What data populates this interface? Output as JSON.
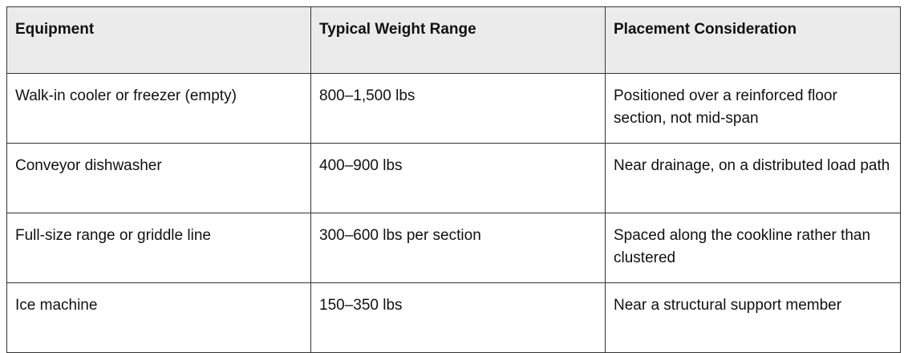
{
  "table": {
    "headers": [
      "Equipment",
      "Typical Weight Range",
      "Placement Consideration"
    ],
    "rows": [
      [
        "Walk-in cooler or freezer (empty)",
        "800–1,500 lbs",
        "Positioned over a reinforced floor section, not mid-span"
      ],
      [
        "Conveyor dishwasher",
        "400–900 lbs",
        "Near drainage, on a distributed load path"
      ],
      [
        "Full-size range or griddle line",
        "300–600 lbs per section",
        "Spaced along the cookline rather than clustered"
      ],
      [
        "Ice machine",
        "150–350 lbs",
        "Near a structural support member"
      ]
    ]
  }
}
